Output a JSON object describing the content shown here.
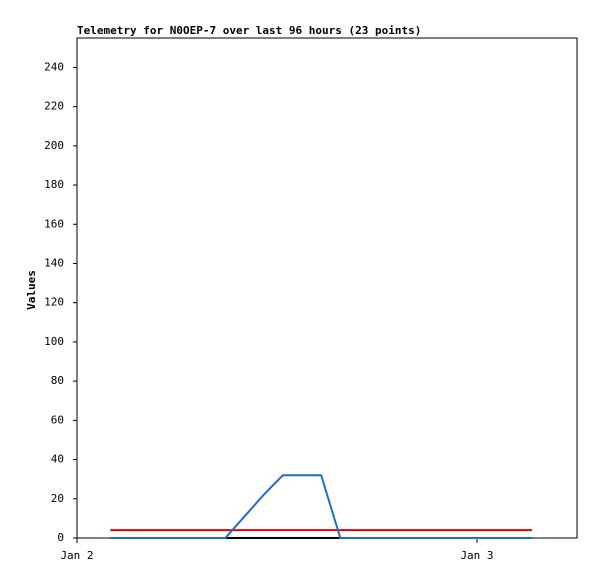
{
  "chart_data": {
    "type": "line",
    "title": "Telemetry for N0OEP-7 over last 96 hours (23 points)",
    "y_label": "Values",
    "x": [
      2,
      3.15,
      4.3,
      5.45,
      6.6,
      7.75,
      8.9,
      10.05,
      11.2,
      12.35,
      13.5,
      14.65,
      15.8,
      16.95,
      18.1,
      19.25,
      20.4,
      21.55,
      22.7,
      23.85,
      25,
      26.15,
      27.3
    ],
    "series": [
      {
        "color": "#000000",
        "values": [
          0,
          0,
          0,
          0,
          0,
          0,
          0,
          0,
          0,
          0,
          0,
          0,
          0,
          0,
          0,
          0,
          0,
          0,
          0,
          0,
          0,
          0,
          0
        ]
      },
      {
        "color": "#e00000",
        "values": [
          4,
          4,
          4,
          4,
          4,
          4,
          4,
          4,
          4,
          4,
          4,
          4,
          4,
          4,
          4,
          4,
          4,
          4,
          4,
          4,
          4,
          4,
          4
        ]
      },
      {
        "color": "#1f6fc5",
        "values": [
          0,
          0,
          0,
          0,
          0,
          0,
          0,
          11,
          22,
          32,
          32,
          32,
          0,
          0,
          0,
          0,
          0,
          0,
          0,
          0,
          0,
          0,
          0
        ]
      }
    ],
    "xlim": [
      0,
      30
    ],
    "xticks": [
      {
        "value": 0,
        "label": "Jan 2"
      },
      {
        "value": 24,
        "label": "Jan 3"
      }
    ],
    "ylim": [
      0,
      255
    ],
    "yticks": [
      0,
      20,
      40,
      60,
      80,
      100,
      120,
      140,
      160,
      180,
      200,
      220,
      240
    ]
  }
}
